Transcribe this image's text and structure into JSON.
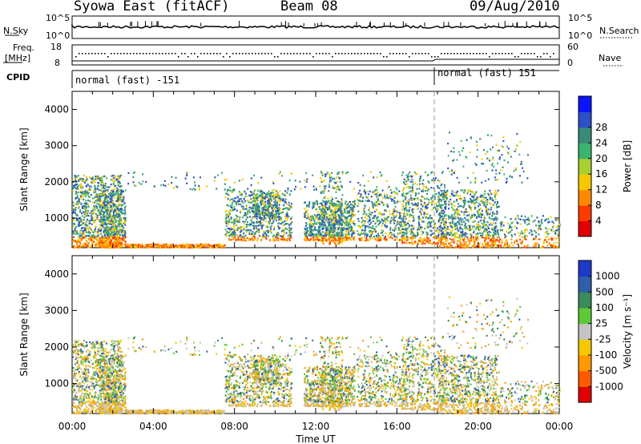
{
  "header": {
    "station": "Syowa East (fitACF)",
    "beam": "Beam 08",
    "date": "09/Aug/2010"
  },
  "top_panels": {
    "nsky_label": "N.Sky",
    "nsky_ticks": [
      "10^5",
      "10^0"
    ],
    "nsearch_label": "N.Search",
    "nsearch_ticks": [
      "10^5",
      "10^0"
    ],
    "freq_label": "Freq.",
    "freq_unit": "[MHz]",
    "freq_ticks": [
      "18",
      "8"
    ],
    "nave_label": "Nave",
    "nave_ticks": [
      "60",
      "0"
    ],
    "cpid_label": "CPID",
    "cpid_segments": [
      {
        "label": "normal (fast) -151",
        "start_hour": 0
      },
      {
        "label": "normal (fast) 151",
        "start_hour": 18
      }
    ]
  },
  "chart_data": [
    {
      "type": "heatmap",
      "name": "power",
      "ylabel": "Slant Range [km]",
      "xlabel": "Time UT",
      "yticks": [
        "1000",
        "2000",
        "3000",
        "4000"
      ],
      "xticks": [
        "00:00",
        "04:00",
        "08:00",
        "12:00",
        "16:00",
        "20:00",
        "00:00"
      ],
      "ylim": [
        180,
        4500
      ],
      "xlim_hours": [
        0,
        24
      ],
      "colorbar_label": "Power [dB]",
      "colorbar_ticks": [
        "4",
        "8",
        "12",
        "16",
        "20",
        "24",
        "28"
      ],
      "colorbar_colors": [
        "#0a14ff",
        "#2b50c8",
        "#3a8a7a",
        "#3cb36e",
        "#a8d030",
        "#f5c800",
        "#ff8a00",
        "#ff3a00",
        "#e00000"
      ],
      "cpid_change_hour": 18
    },
    {
      "type": "heatmap",
      "name": "velocity",
      "ylabel": "Slant Range [km]",
      "xlabel": "Time UT",
      "yticks": [
        "1000",
        "2000",
        "3000",
        "4000"
      ],
      "xticks": [
        "00:00",
        "04:00",
        "08:00",
        "12:00",
        "16:00",
        "20:00",
        "00:00"
      ],
      "ylim": [
        180,
        4500
      ],
      "xlim_hours": [
        0,
        24
      ],
      "colorbar_label": "Velocity [m s⁻¹]",
      "colorbar_ticks": [
        "1000",
        "500",
        "100",
        "25",
        "-25",
        "-100",
        "-500",
        "-1000"
      ],
      "colorbar_colors": [
        "#1f3ac8",
        "#2f5fa8",
        "#3a8a5a",
        "#5ec838",
        "#c4c4c4",
        "#f5c800",
        "#ff9a00",
        "#ff5a00",
        "#e00000"
      ],
      "cpid_change_hour": 18
    }
  ],
  "colors": {
    "power_scatter": [
      "#2b50c8",
      "#3a8a7a",
      "#3cb36e",
      "#f5c800",
      "#ff8a00",
      "#ff3a00"
    ],
    "velocity_scatter": [
      "#c4c4c4",
      "#c8b870",
      "#f5c800",
      "#ff9a00",
      "#3a8a5a",
      "#2f5fa8",
      "#5ec838"
    ]
  }
}
